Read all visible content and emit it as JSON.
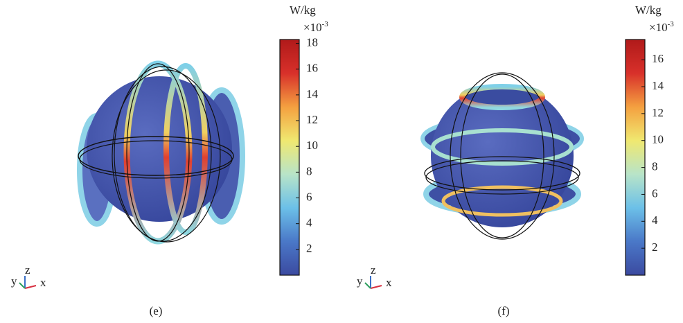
{
  "chart_data": [
    {
      "type": "colorbar",
      "unit": "W/kg",
      "scale_label": "×10",
      "scale_exponent": "-3",
      "ylim": [
        0,
        18.3
      ],
      "yticks": [
        2,
        4,
        6,
        8,
        10,
        12,
        14,
        16,
        18
      ],
      "colormap": [
        "#3b4aa0",
        "#4a78c8",
        "#6cc0e8",
        "#b8e4c8",
        "#f0e870",
        "#f4a040",
        "#d8302a",
        "#b01a1a"
      ],
      "axis_labels": [
        "y",
        "z",
        "x"
      ],
      "panel_label": "(e)"
    },
    {
      "type": "colorbar",
      "unit": "W/kg",
      "scale_label": "×10",
      "scale_exponent": "-3",
      "ylim": [
        0,
        17.5
      ],
      "yticks": [
        2,
        4,
        6,
        8,
        10,
        12,
        14,
        16
      ],
      "colormap": [
        "#3b4aa0",
        "#4a78c8",
        "#6cc0e8",
        "#b8e4c8",
        "#f0e870",
        "#f4a040",
        "#d8302a",
        "#b01a1a"
      ],
      "axis_labels": [
        "y",
        "z",
        "x"
      ],
      "panel_label": "(f)"
    }
  ]
}
